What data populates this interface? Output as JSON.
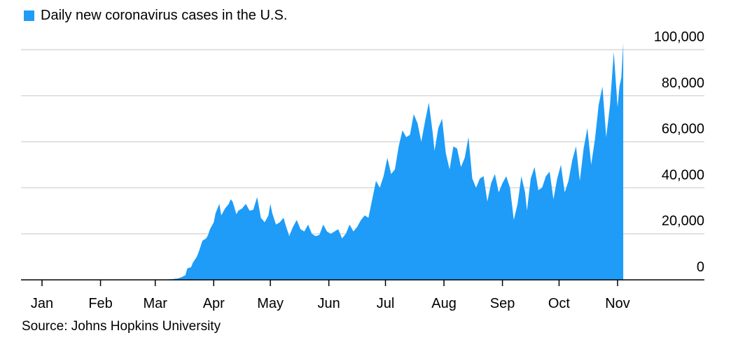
{
  "legend": {
    "label": "Daily new coronavirus cases in the U.S.",
    "color": "#1e9cf7"
  },
  "source": "Source: Johns Hopkins University",
  "colors": {
    "area": "#1e9cf7",
    "grid": "#d9d9d9",
    "axis": "#000000"
  },
  "chart_data": {
    "type": "area",
    "title": "",
    "xlabel": "",
    "ylabel": "",
    "year": 2020,
    "ylim": [
      0,
      100000
    ],
    "yticks": [
      0,
      20000,
      40000,
      60000,
      80000,
      100000
    ],
    "ytick_labels": [
      "0",
      "20,000",
      "40,000",
      "60,000",
      "80,000",
      "100,000"
    ],
    "y_axis_side": "right",
    "grid": true,
    "legend": "top-left",
    "xtick_labels": [
      "Jan",
      "Feb",
      "Mar",
      "Apr",
      "May",
      "Jun",
      "Jul",
      "Aug",
      "Sep",
      "Oct",
      "Nov"
    ],
    "xtick_dates": [
      "2020-01-01",
      "2020-02-01",
      "2020-03-01",
      "2020-04-01",
      "2020-05-01",
      "2020-06-01",
      "2020-07-01",
      "2020-08-01",
      "2020-09-01",
      "2020-10-01",
      "2020-11-01"
    ],
    "series": [
      {
        "name": "Daily new coronavirus cases in the U.S.",
        "points": [
          [
            "2020-01-22",
            0
          ],
          [
            "2020-03-06",
            100
          ],
          [
            "2020-03-10",
            300
          ],
          [
            "2020-03-13",
            600
          ],
          [
            "2020-03-15",
            1200
          ],
          [
            "2020-03-17",
            2000
          ],
          [
            "2020-03-18",
            5000
          ],
          [
            "2020-03-20",
            5500
          ],
          [
            "2020-03-21",
            7500
          ],
          [
            "2020-03-23",
            10000
          ],
          [
            "2020-03-24",
            12000
          ],
          [
            "2020-03-26",
            17000
          ],
          [
            "2020-03-28",
            18000
          ],
          [
            "2020-03-29",
            19500
          ],
          [
            "2020-03-30",
            22000
          ],
          [
            "2020-04-01",
            25000
          ],
          [
            "2020-04-02",
            29000
          ],
          [
            "2020-04-03",
            31000
          ],
          [
            "2020-04-04",
            33000
          ],
          [
            "2020-04-05",
            28000
          ],
          [
            "2020-04-07",
            31000
          ],
          [
            "2020-04-09",
            33000
          ],
          [
            "2020-04-10",
            35000
          ],
          [
            "2020-04-11",
            34000
          ],
          [
            "2020-04-13",
            28500
          ],
          [
            "2020-04-14",
            30000
          ],
          [
            "2020-04-16",
            31000
          ],
          [
            "2020-04-18",
            33000
          ],
          [
            "2020-04-20",
            30000
          ],
          [
            "2020-04-22",
            30500
          ],
          [
            "2020-04-24",
            36000
          ],
          [
            "2020-04-26",
            27000
          ],
          [
            "2020-04-28",
            25000
          ],
          [
            "2020-04-30",
            28000
          ],
          [
            "2020-05-01",
            33000
          ],
          [
            "2020-05-02",
            29000
          ],
          [
            "2020-05-04",
            24000
          ],
          [
            "2020-05-06",
            25000
          ],
          [
            "2020-05-08",
            27000
          ],
          [
            "2020-05-09",
            24000
          ],
          [
            "2020-05-11",
            19000
          ],
          [
            "2020-05-13",
            23000
          ],
          [
            "2020-05-15",
            26000
          ],
          [
            "2020-05-17",
            22000
          ],
          [
            "2020-05-19",
            21000
          ],
          [
            "2020-05-21",
            24000
          ],
          [
            "2020-05-23",
            20000
          ],
          [
            "2020-05-25",
            19000
          ],
          [
            "2020-05-27",
            19500
          ],
          [
            "2020-05-29",
            24000
          ],
          [
            "2020-05-31",
            21000
          ],
          [
            "2020-06-02",
            20000
          ],
          [
            "2020-06-04",
            21000
          ],
          [
            "2020-06-06",
            22000
          ],
          [
            "2020-06-08",
            18000
          ],
          [
            "2020-06-10",
            20000
          ],
          [
            "2020-06-12",
            24000
          ],
          [
            "2020-06-14",
            21000
          ],
          [
            "2020-06-16",
            23000
          ],
          [
            "2020-06-18",
            26000
          ],
          [
            "2020-06-20",
            28000
          ],
          [
            "2020-06-22",
            27000
          ],
          [
            "2020-06-24",
            35000
          ],
          [
            "2020-06-26",
            43000
          ],
          [
            "2020-06-28",
            40000
          ],
          [
            "2020-06-30",
            45000
          ],
          [
            "2020-07-02",
            53000
          ],
          [
            "2020-07-04",
            46000
          ],
          [
            "2020-07-06",
            48000
          ],
          [
            "2020-07-08",
            58000
          ],
          [
            "2020-07-10",
            65000
          ],
          [
            "2020-07-12",
            62000
          ],
          [
            "2020-07-14",
            63000
          ],
          [
            "2020-07-16",
            72000
          ],
          [
            "2020-07-18",
            68000
          ],
          [
            "2020-07-20",
            60000
          ],
          [
            "2020-07-22",
            69000
          ],
          [
            "2020-07-24",
            77000
          ],
          [
            "2020-07-26",
            64000
          ],
          [
            "2020-07-27",
            56000
          ],
          [
            "2020-07-29",
            66000
          ],
          [
            "2020-07-31",
            70000
          ],
          [
            "2020-08-02",
            55000
          ],
          [
            "2020-08-04",
            48000
          ],
          [
            "2020-08-06",
            58000
          ],
          [
            "2020-08-08",
            57000
          ],
          [
            "2020-08-10",
            49000
          ],
          [
            "2020-08-12",
            53000
          ],
          [
            "2020-08-14",
            62000
          ],
          [
            "2020-08-16",
            44000
          ],
          [
            "2020-08-18",
            40000
          ],
          [
            "2020-08-20",
            44000
          ],
          [
            "2020-08-22",
            45000
          ],
          [
            "2020-08-24",
            34000
          ],
          [
            "2020-08-26",
            42000
          ],
          [
            "2020-08-28",
            46000
          ],
          [
            "2020-08-30",
            38000
          ],
          [
            "2020-09-01",
            42000
          ],
          [
            "2020-09-03",
            45000
          ],
          [
            "2020-09-05",
            40000
          ],
          [
            "2020-09-07",
            26000
          ],
          [
            "2020-09-09",
            33000
          ],
          [
            "2020-09-11",
            45000
          ],
          [
            "2020-09-13",
            38000
          ],
          [
            "2020-09-14",
            30000
          ],
          [
            "2020-09-16",
            44000
          ],
          [
            "2020-09-18",
            49000
          ],
          [
            "2020-09-20",
            39000
          ],
          [
            "2020-09-22",
            40000
          ],
          [
            "2020-09-24",
            45000
          ],
          [
            "2020-09-26",
            47000
          ],
          [
            "2020-09-28",
            35000
          ],
          [
            "2020-09-30",
            44000
          ],
          [
            "2020-10-02",
            50000
          ],
          [
            "2020-10-04",
            38000
          ],
          [
            "2020-10-06",
            43000
          ],
          [
            "2020-10-08",
            52000
          ],
          [
            "2020-10-10",
            58000
          ],
          [
            "2020-10-12",
            43000
          ],
          [
            "2020-10-14",
            57000
          ],
          [
            "2020-10-16",
            66000
          ],
          [
            "2020-10-18",
            50000
          ],
          [
            "2020-10-20",
            61000
          ],
          [
            "2020-10-22",
            76000
          ],
          [
            "2020-10-24",
            84000
          ],
          [
            "2020-10-26",
            62000
          ],
          [
            "2020-10-28",
            76000
          ],
          [
            "2020-10-30",
            99000
          ],
          [
            "2020-11-01",
            75000
          ],
          [
            "2020-11-02",
            84000
          ],
          [
            "2020-11-03",
            88000
          ],
          [
            "2020-11-04",
            103000
          ]
        ]
      }
    ]
  }
}
